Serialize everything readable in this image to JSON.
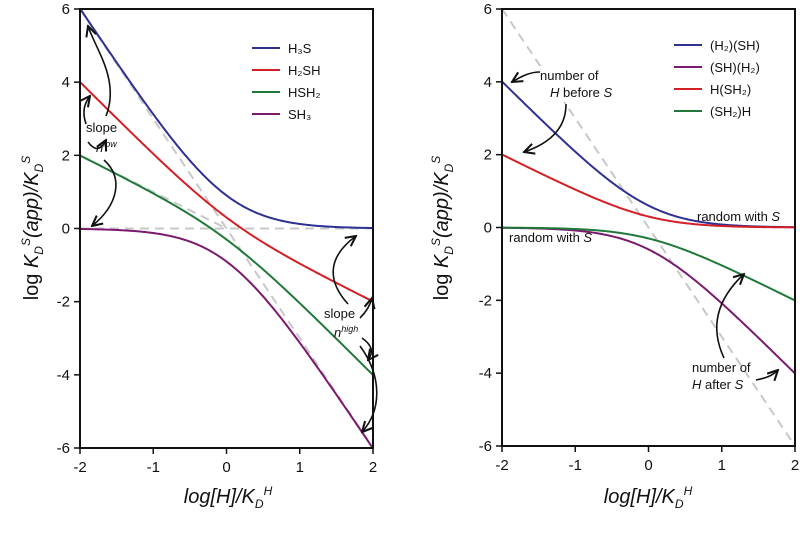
{
  "chart_data": [
    {
      "type": "line",
      "panel": "left",
      "title": "",
      "xlabel": "log[H]/K_D^H",
      "ylabel": "log K_D^S(app)/K_D^S",
      "xlim": [
        -2,
        2
      ],
      "ylim": [
        -6,
        6
      ],
      "xticks": [
        -2,
        -1,
        0,
        1,
        2
      ],
      "yticks": [
        -6,
        -4,
        -2,
        0,
        2,
        4,
        6
      ],
      "xtick_labels": [
        "-2",
        "-1",
        "0",
        "1",
        "2"
      ],
      "ytick_labels": [
        "-6",
        "-4",
        "-2",
        "0",
        "2",
        "4",
        "6"
      ],
      "legend_position": "top-right",
      "series": [
        {
          "name": "H3S",
          "label": "H₃S",
          "color": "#2e3192",
          "n_low": 3,
          "n_high": 0,
          "values_at_x": {
            "-2": 6.0,
            "-1": 3.0,
            "0": 0.6,
            "1": 0.0,
            "2": 0.0
          }
        },
        {
          "name": "H2SH",
          "label": "H₂SH",
          "color": "#d41f26",
          "n_low": 2,
          "n_high": 1,
          "values_at_x": {
            "-2": 4.0,
            "-1": 1.97,
            "0": 0.3,
            "1": -1.0,
            "2": -2.0
          }
        },
        {
          "name": "HSH2",
          "label": "HSH₂",
          "color": "#1f7a3a",
          "n_low": 1,
          "n_high": 2,
          "values_at_x": {
            "-2": 2.0,
            "-1": 0.96,
            "0": -0.3,
            "1": -2.0,
            "2": -4.0
          }
        },
        {
          "name": "SH3",
          "label": "SH₃",
          "color": "#7b1a6e",
          "n_low": 0,
          "n_high": 3,
          "values_at_x": {
            "-2": 0.0,
            "-1": -0.04,
            "0": -0.6,
            "1": -3.0,
            "2": -6.0
          }
        }
      ],
      "reference_lines": [
        {
          "name": "slope -3 asymptote",
          "color": "#c8c8c8",
          "style": "dashed",
          "from": [
            -2,
            6
          ],
          "to": [
            2,
            -6
          ]
        },
        {
          "name": "slope -1 asymptote",
          "color": "#c8c8c8",
          "style": "dashed",
          "from": [
            -2,
            2
          ],
          "to": [
            0,
            0
          ]
        },
        {
          "name": "zero line",
          "color": "#c8c8c8",
          "style": "dashed",
          "from": [
            -2,
            0
          ],
          "to": [
            2,
            0
          ]
        }
      ],
      "annotations": {
        "slope_low": {
          "word": "slope",
          "symbol": "n",
          "sup": "low"
        },
        "slope_high": {
          "word": "slope",
          "symbol": "n",
          "sup": "high"
        }
      }
    },
    {
      "type": "line",
      "panel": "right",
      "title": "",
      "xlabel": "log[H]/K_D^H",
      "ylabel": "log K_D^S(app)/K_D^S",
      "xlim": [
        -2,
        2
      ],
      "ylim": [
        -6,
        6
      ],
      "xticks": [
        -2,
        -1,
        0,
        1,
        2
      ],
      "yticks": [
        -6,
        -4,
        -2,
        0,
        2,
        4,
        6
      ],
      "xtick_labels": [
        "-2",
        "-1",
        "0",
        "1",
        "2"
      ],
      "ytick_labels": [
        "-6",
        "-4",
        "-2",
        "0",
        "2",
        "4",
        "6"
      ],
      "legend_position": "top-right",
      "series": [
        {
          "name": "(H2)(SH)",
          "label": "(H₂)(SH)",
          "color": "#2e3192",
          "n_low": 2,
          "n_high": 0,
          "values_at_x": {
            "-2": 4.0,
            "-1": 2.0,
            "0": 0.3,
            "1": 0.0,
            "2": 0.0
          }
        },
        {
          "name": "(SH)(H2)",
          "label": "(SH)(H₂)",
          "color": "#7b1a6e",
          "n_low": 0,
          "n_high": 2,
          "values_at_x": {
            "-2": 0.0,
            "-1": 0.0,
            "0": -0.3,
            "1": -2.0,
            "2": -4.0
          }
        },
        {
          "name": "H(SH2)",
          "label": "H(SH₂)",
          "color": "#d41f26",
          "n_low": 1,
          "n_high": 0,
          "values_at_x": {
            "-2": 2.0,
            "-1": 1.0,
            "0": 0.13,
            "1": 0.0,
            "2": 0.0
          }
        },
        {
          "name": "(SH2)H",
          "label": "(SH₂)H",
          "color": "#1f7a3a",
          "n_low": 0,
          "n_high": 1,
          "values_at_x": {
            "-2": 0.0,
            "-1": 0.0,
            "0": -0.13,
            "1": -1.0,
            "2": -2.0
          }
        }
      ],
      "reference_lines": [
        {
          "name": "slope -3 asymptote",
          "color": "#c8c8c8",
          "style": "dashed",
          "from": [
            -2,
            6
          ],
          "to": [
            2,
            -6
          ]
        }
      ],
      "annotations": {
        "h_before_line1": "number of",
        "h_before_line2_symbol": "H",
        "h_before_line2_text": " before ",
        "h_before_line2_s": "S",
        "random_upper_text": "random with ",
        "random_upper_s": "S",
        "random_lower_text": "random with ",
        "random_lower_s": "S",
        "h_after_line1": "number of",
        "h_after_line2_symbol": "H",
        "h_after_line2_text": " after ",
        "h_after_line2_s": "S"
      }
    }
  ]
}
